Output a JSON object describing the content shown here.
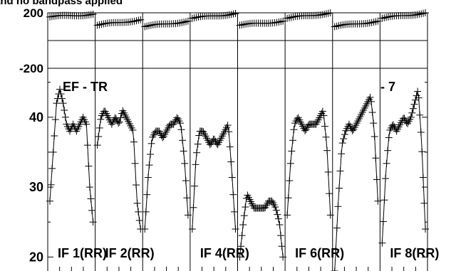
{
  "chart_data": {
    "type": "scatter",
    "title": "and no bandpass applied",
    "panels": [
      {
        "name": "phase",
        "ylim": [
          -200,
          200
        ],
        "ytick_labels": [
          "200",
          "-200"
        ],
        "yticks": [
          200,
          -200
        ],
        "hlines": [
          0
        ]
      },
      {
        "name": "amplitude",
        "ylim": [
          18,
          47
        ],
        "ytick_labels": [
          "40",
          "30",
          "20"
        ],
        "yticks": [
          40,
          30,
          20
        ]
      }
    ],
    "annotations": [
      "EF - TR",
      "- 7"
    ],
    "subbands": [
      {
        "label": "IF 1(RR)",
        "phase_start": 170,
        "phase_end": 190,
        "amp": [
          28,
          35,
          42,
          44,
          42,
          39,
          38,
          39,
          38,
          39,
          40,
          39,
          30,
          25
        ]
      },
      {
        "label": "IF 2(RR)",
        "phase_start": 110,
        "phase_end": 150,
        "amp": [
          36,
          40,
          41,
          40,
          39,
          40,
          39,
          41,
          40,
          39,
          38,
          28,
          24
        ]
      },
      {
        "label": "",
        "phase_start": 100,
        "phase_end": 140,
        "amp": [
          24,
          32,
          37,
          38,
          38,
          37,
          38,
          39,
          39,
          40,
          39,
          34,
          26
        ]
      },
      {
        "label": "IF 4(RR)",
        "phase_start": 160,
        "phase_end": 195,
        "amp": [
          24,
          34,
          38,
          38,
          37,
          36,
          37,
          36,
          37,
          38,
          39,
          32,
          24
        ]
      },
      {
        "label": "",
        "phase_start": 110,
        "phase_end": 140,
        "amp": [
          20,
          25,
          29,
          28,
          27,
          27,
          27,
          27,
          28,
          28,
          27,
          25,
          20
        ]
      },
      {
        "label": "IF 6(RR)",
        "phase_start": 160,
        "phase_end": 200,
        "amp": [
          26,
          34,
          39,
          40,
          39,
          38,
          39,
          39,
          39,
          40,
          41,
          36,
          26
        ]
      },
      {
        "label": "",
        "phase_start": 100,
        "phase_end": 140,
        "amp": [
          18,
          28,
          36,
          38,
          39,
          38,
          39,
          40,
          41,
          42,
          43,
          38,
          28
        ]
      },
      {
        "label": "IF 8(RR)",
        "phase_start": 160,
        "phase_end": 200,
        "amp": [
          22,
          32,
          38,
          39,
          38,
          39,
          40,
          39,
          40,
          42,
          44,
          36,
          24
        ]
      }
    ]
  }
}
